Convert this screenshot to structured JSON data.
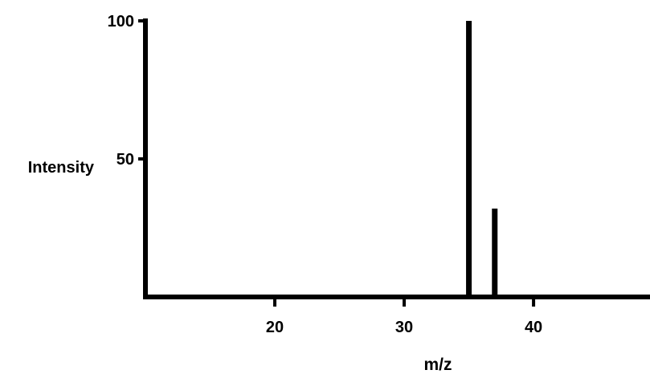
{
  "chart_data": {
    "type": "bar",
    "title": "",
    "xlabel": "m/z",
    "ylabel": "Intensity",
    "xlim": [
      10,
      49
    ],
    "ylim": [
      0,
      100
    ],
    "x_ticks": [
      {
        "value": 20,
        "label": "20"
      },
      {
        "value": 30,
        "label": "30"
      },
      {
        "value": 40,
        "label": "40"
      }
    ],
    "y_ticks": [
      {
        "value": 50,
        "label": "50"
      },
      {
        "value": 100,
        "label": "100"
      }
    ],
    "peaks": [
      {
        "mz": 35,
        "intensity": 100
      },
      {
        "mz": 37,
        "intensity": 32
      }
    ],
    "grid": false,
    "legend": "none",
    "colors": {
      "axis": "#000000",
      "peak": "#000000"
    }
  }
}
